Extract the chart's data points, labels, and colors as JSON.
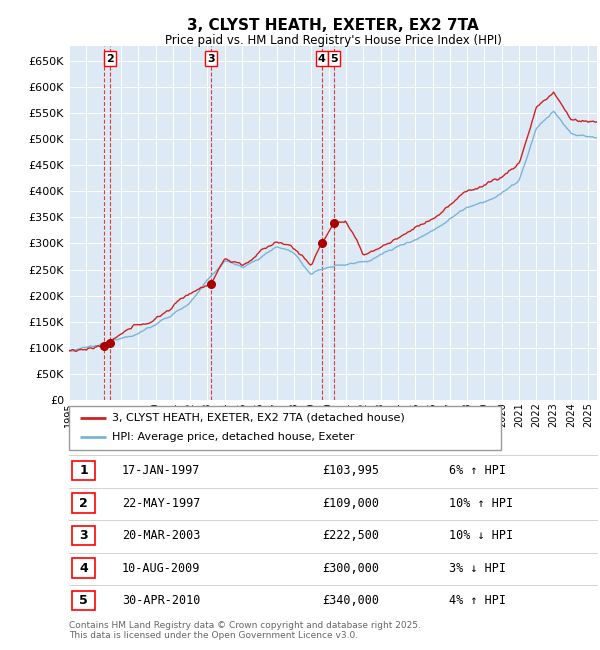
{
  "title": "3, CLYST HEATH, EXETER, EX2 7TA",
  "subtitle": "Price paid vs. HM Land Registry's House Price Index (HPI)",
  "footer": "Contains HM Land Registry data © Crown copyright and database right 2025.\nThis data is licensed under the Open Government Licence v3.0.",
  "legend_line1": "3, CLYST HEATH, EXETER, EX2 7TA (detached house)",
  "legend_line2": "HPI: Average price, detached house, Exeter",
  "hpi_color": "#7ab4d8",
  "price_color": "#cc2222",
  "marker_color": "#aa0000",
  "dashed_color": "#cc2222",
  "bg_color": "#ddeaf5",
  "grid_color": "#ffffff",
  "ylim": [
    0,
    680000
  ],
  "yticks": [
    0,
    50000,
    100000,
    150000,
    200000,
    250000,
    300000,
    350000,
    400000,
    450000,
    500000,
    550000,
    600000,
    650000
  ],
  "ytick_labels": [
    "£0",
    "£50K",
    "£100K",
    "£150K",
    "£200K",
    "£250K",
    "£300K",
    "£350K",
    "£400K",
    "£450K",
    "£500K",
    "£550K",
    "£600K",
    "£650K"
  ],
  "transactions": [
    {
      "num": 1,
      "date": "17-JAN-1997",
      "price": 103995,
      "pct": "6%",
      "dir": "↑",
      "year": 1997.04
    },
    {
      "num": 2,
      "date": "22-MAY-1997",
      "price": 109000,
      "pct": "10%",
      "dir": "↑",
      "year": 1997.39
    },
    {
      "num": 3,
      "date": "20-MAR-2003",
      "price": 222500,
      "pct": "10%",
      "dir": "↓",
      "year": 2003.22
    },
    {
      "num": 4,
      "date": "10-AUG-2009",
      "price": 300000,
      "pct": "3%",
      "dir": "↓",
      "year": 2009.61
    },
    {
      "num": 5,
      "date": "30-APR-2010",
      "price": 340000,
      "pct": "4%",
      "dir": "↑",
      "year": 2010.33
    }
  ],
  "table_rows": [
    [
      "1",
      "17-JAN-1997",
      "£103,995",
      "6% ↑ HPI"
    ],
    [
      "2",
      "22-MAY-1997",
      "£109,000",
      "10% ↑ HPI"
    ],
    [
      "3",
      "20-MAR-2003",
      "£222,500",
      "10% ↓ HPI"
    ],
    [
      "4",
      "10-AUG-2009",
      "£300,000",
      "3% ↓ HPI"
    ],
    [
      "5",
      "30-APR-2010",
      "£340,000",
      "4% ↑ HPI"
    ]
  ],
  "xtick_years": [
    1995,
    1996,
    1997,
    1998,
    1999,
    2000,
    2001,
    2002,
    2003,
    2004,
    2005,
    2006,
    2007,
    2008,
    2009,
    2010,
    2011,
    2012,
    2013,
    2014,
    2015,
    2016,
    2017,
    2018,
    2019,
    2020,
    2021,
    2022,
    2023,
    2024,
    2025
  ]
}
